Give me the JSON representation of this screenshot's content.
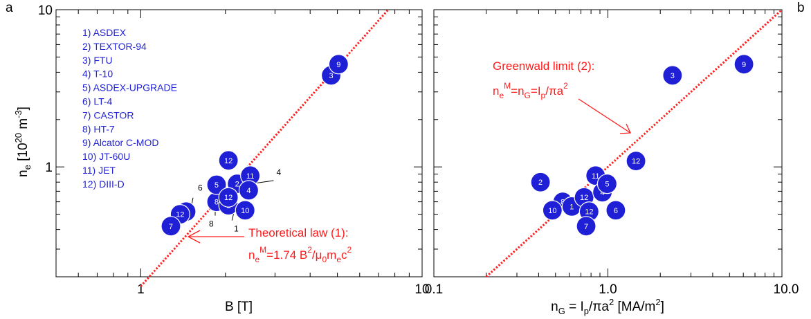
{
  "figure": {
    "panel_a_letter": "a",
    "panel_b_letter": "b"
  },
  "chart_data": [
    {
      "panel": "a",
      "type": "scatter",
      "xscale": "log",
      "yscale": "log",
      "xlim": [
        0.5,
        10
      ],
      "ylim": [
        0.2,
        10
      ],
      "xticks": [
        {
          "v": 1,
          "label": "1"
        },
        {
          "v": 10,
          "label": "10"
        }
      ],
      "yticks": [
        {
          "v": 1,
          "label": "1"
        },
        {
          "v": 10,
          "label": "10"
        }
      ],
      "xlabel": "B  [T]",
      "ylabel": {
        "base": "n",
        "sub": "e",
        "rest": "  [10",
        "sup": "20",
        "units": " m",
        "sup2": "-3",
        "close": "]"
      },
      "legend": [
        "1) ASDEX",
        "2) TEXTOR-94",
        "3) FTU",
        "4) T-10",
        "5) ASDEX-UPGRADE",
        "6) LT-4",
        "7) CASTOR",
        "8) HT-7",
        "9) Alcator C-MOD",
        "10) JT-60U",
        "11) JET",
        "12) DIII-D"
      ],
      "legend_position": "top-left",
      "points": [
        {
          "x": 1.45,
          "y": 0.52,
          "label": "6"
        },
        {
          "x": 1.38,
          "y": 0.5,
          "label": "12"
        },
        {
          "x": 1.28,
          "y": 0.42,
          "label": "7"
        },
        {
          "x": 1.86,
          "y": 0.6,
          "label": "8"
        },
        {
          "x": 2.05,
          "y": 0.57,
          "label": "1"
        },
        {
          "x": 1.86,
          "y": 0.77,
          "label": "5"
        },
        {
          "x": 2.2,
          "y": 0.78,
          "label": "2"
        },
        {
          "x": 2.05,
          "y": 1.1,
          "label": "12"
        },
        {
          "x": 2.05,
          "y": 0.64,
          "label": "12"
        },
        {
          "x": 2.45,
          "y": 0.88,
          "label": "11"
        },
        {
          "x": 2.42,
          "y": 0.71,
          "label": "4"
        },
        {
          "x": 2.35,
          "y": 0.53,
          "label": "10"
        },
        {
          "x": 4.75,
          "y": 3.82,
          "label": "3"
        },
        {
          "x": 5.05,
          "y": 4.5,
          "label": "9"
        }
      ],
      "callouts": [
        "6",
        "1",
        "8",
        "4"
      ],
      "line": {
        "style": "dotted",
        "color": "#ff2020",
        "slope_loglog": 2,
        "points": [
          {
            "x": 1.0,
            "y": 0.174
          },
          {
            "x": 7.58,
            "y": 10
          }
        ]
      },
      "annotations": {
        "title": "Theoretical law (1):",
        "formula": {
          "n": "n",
          "e": "e",
          "M": "M",
          "rest1": "=1.74 B",
          "two": "2",
          "rest2": "/μ",
          "zero": "0",
          "rest3": "m",
          "e2": "e",
          "rest4": "c",
          "two2": "2"
        }
      }
    },
    {
      "panel": "b",
      "type": "scatter",
      "xscale": "log",
      "yscale": "log",
      "xlim": [
        0.1,
        10
      ],
      "ylim": [
        0.2,
        10
      ],
      "xticks": [
        {
          "v": 0.1,
          "label": "0.1"
        },
        {
          "v": 1,
          "label": "1.0"
        },
        {
          "v": 10,
          "label": "10.0"
        }
      ],
      "yticks": [
        {
          "v": 1,
          "label": ""
        },
        {
          "v": 10,
          "label": ""
        }
      ],
      "xlabel": {
        "a": "n",
        "b": "G",
        "c": " = I",
        "d": "p",
        "e": "/πa",
        "f": "2",
        "g": "  [MA/m",
        "h": "2",
        "i": "]"
      },
      "points": [
        {
          "x": 0.41,
          "y": 0.8,
          "label": "2"
        },
        {
          "x": 0.55,
          "y": 0.6,
          "label": "8"
        },
        {
          "x": 0.48,
          "y": 0.53,
          "label": "10"
        },
        {
          "x": 0.62,
          "y": 0.56,
          "label": "1"
        },
        {
          "x": 0.73,
          "y": 0.64,
          "label": "12"
        },
        {
          "x": 0.78,
          "y": 0.52,
          "label": "12"
        },
        {
          "x": 0.75,
          "y": 0.42,
          "label": "7"
        },
        {
          "x": 0.85,
          "y": 0.88,
          "label": "11"
        },
        {
          "x": 0.93,
          "y": 0.69,
          "label": "4"
        },
        {
          "x": 0.99,
          "y": 0.78,
          "label": "5"
        },
        {
          "x": 1.11,
          "y": 0.53,
          "label": "6"
        },
        {
          "x": 1.45,
          "y": 1.09,
          "label": "12"
        },
        {
          "x": 2.35,
          "y": 3.82,
          "label": "3"
        },
        {
          "x": 6.05,
          "y": 4.5,
          "label": "9"
        }
      ],
      "line": {
        "style": "dotted",
        "color": "#ff2020",
        "slope_loglog": 1,
        "points": [
          {
            "x": 0.2,
            "y": 0.2
          },
          {
            "x": 10,
            "y": 10
          }
        ]
      },
      "annotations": {
        "title": "Greenwald limit (2):",
        "formula": {
          "n": "n",
          "e": "e",
          "M": "M",
          "eq": "=n",
          "G": "G",
          "rest": "=I",
          "p": "p",
          "rest2": "/πa",
          "two": "2"
        }
      }
    }
  ]
}
